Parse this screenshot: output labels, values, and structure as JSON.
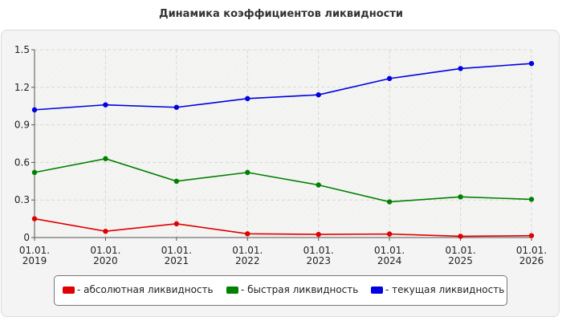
{
  "chart_data": {
    "type": "line",
    "title": "Динамика коэффициентов ликвидности",
    "x": [
      "01.01.2019",
      "01.01.2020",
      "01.01.2021",
      "01.01.2022",
      "01.01.2023",
      "01.01.2024",
      "01.01.2025",
      "01.01.2026"
    ],
    "x_tick_labels": [
      [
        "01.01.",
        "2019"
      ],
      [
        "01.01.",
        "2020"
      ],
      [
        "01.01.",
        "2021"
      ],
      [
        "01.01.",
        "2022"
      ],
      [
        "01.01.",
        "2023"
      ],
      [
        "01.01.",
        "2024"
      ],
      [
        "01.01.",
        "2025"
      ],
      [
        "01.01.",
        "2026"
      ]
    ],
    "ylim": [
      0,
      1.5
    ],
    "y_ticks": [
      "0",
      "0.3",
      "0.6",
      "0.9",
      "1.2",
      "1.5"
    ],
    "grid": true,
    "legend_position": "bottom",
    "series": [
      {
        "name": "- абсолютная ликвидность",
        "color": "#e00000",
        "values": [
          0.15,
          0.05,
          0.11,
          0.03,
          0.025,
          0.028,
          0.01,
          0.015
        ]
      },
      {
        "name": "- быстрая ликвидность",
        "color": "#008000",
        "values": [
          0.52,
          0.63,
          0.45,
          0.52,
          0.42,
          0.285,
          0.325,
          0.305
        ]
      },
      {
        "name": "- текущая ликвидность",
        "color": "#0000e0",
        "values": [
          1.02,
          1.06,
          1.04,
          1.11,
          1.14,
          1.27,
          1.35,
          1.39
        ]
      }
    ]
  }
}
